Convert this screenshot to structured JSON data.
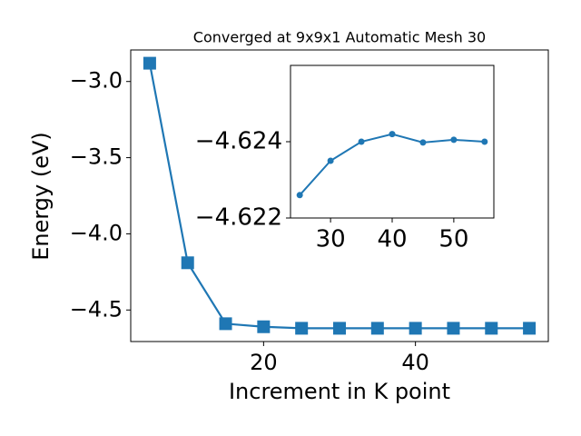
{
  "chart_data": [
    {
      "type": "line",
      "title": "Converged at 9x9x1 Automatic Mesh 30",
      "xlabel": "Increment in K point",
      "ylabel": "Energy (eV)",
      "x": [
        5,
        10,
        15,
        20,
        25,
        30,
        35,
        40,
        45,
        50,
        55
      ],
      "series": [
        {
          "name": "Energy",
          "color": "#1f77b4",
          "marker": "square",
          "values": [
            -2.88,
            -4.19,
            -4.59,
            -4.61,
            -4.62,
            -4.62,
            -4.62,
            -4.62,
            -4.62,
            -4.62,
            -4.62
          ]
        }
      ],
      "xlim": [
        2.5,
        57.5
      ],
      "ylim": [
        -4.707,
        -2.793
      ],
      "xticks": [
        20,
        40
      ],
      "yticks": [
        {
          "value": -3.0,
          "label": "−3.0"
        },
        {
          "value": -3.5,
          "label": "−3.5"
        },
        {
          "value": -4.0,
          "label": "−4.0"
        },
        {
          "value": -4.5,
          "label": "−4.5"
        }
      ],
      "grid": false
    },
    {
      "type": "line",
      "x": [
        25,
        30,
        35,
        40,
        45,
        50,
        55
      ],
      "series": [
        {
          "name": "Energy",
          "color": "#1f77b4",
          "marker": "circle",
          "values": [
            -4.6226,
            -4.6235,
            -4.624,
            -4.6242,
            -4.62398,
            -4.62405,
            -4.624
          ]
        }
      ],
      "xlim": [
        23.5,
        56.5
      ],
      "ylim": [
        -4.622,
        -4.626
      ],
      "xticks": [
        30,
        40,
        50
      ],
      "yticks": [
        {
          "value": -4.624,
          "label": "−4.624"
        },
        {
          "value": -4.622,
          "label": "−4.622"
        }
      ],
      "grid": false
    }
  ]
}
